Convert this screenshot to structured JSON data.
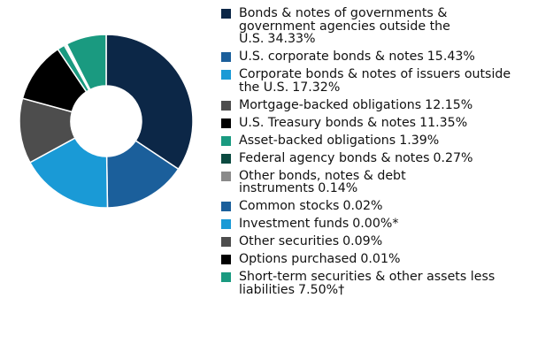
{
  "chart_data": {
    "type": "donut",
    "categories": [
      "Bonds & notes of governments & government agencies outside the U.S.",
      "U.S. corporate bonds & notes",
      "Corporate bonds & notes of issuers outside the U.S.",
      "Mortgage-backed obligations",
      "U.S. Treasury bonds & notes",
      "Asset-backed obligations",
      "Federal agency bonds & notes",
      "Other bonds, notes & debt instruments",
      "Common stocks",
      "Investment funds",
      "Other securities",
      "Options purchased",
      "Short-term securities & other assets less liabilities"
    ],
    "values": [
      34.33,
      15.43,
      17.32,
      12.15,
      11.35,
      1.39,
      0.27,
      0.14,
      0.02,
      0,
      0.09,
      0.01,
      7.5
    ],
    "value_labels": [
      "34.33%",
      "15.43%",
      "17.32%",
      "12.15%",
      "11.35%",
      "1.39%",
      "0.27%",
      "0.14%",
      "0.02%",
      "0.00%*",
      "0.09%",
      "0.01%",
      "7.50%†"
    ],
    "colors": [
      "#0c2747",
      "#1b5f9b",
      "#1a9ad6",
      "#4d4d4d",
      "#000000",
      "#1a9a80",
      "#0b4a40",
      "#8a8a8a",
      "#1b5f9b",
      "#1a9ad6",
      "#4d4d4d",
      "#000000",
      "#1a9a80"
    ]
  }
}
